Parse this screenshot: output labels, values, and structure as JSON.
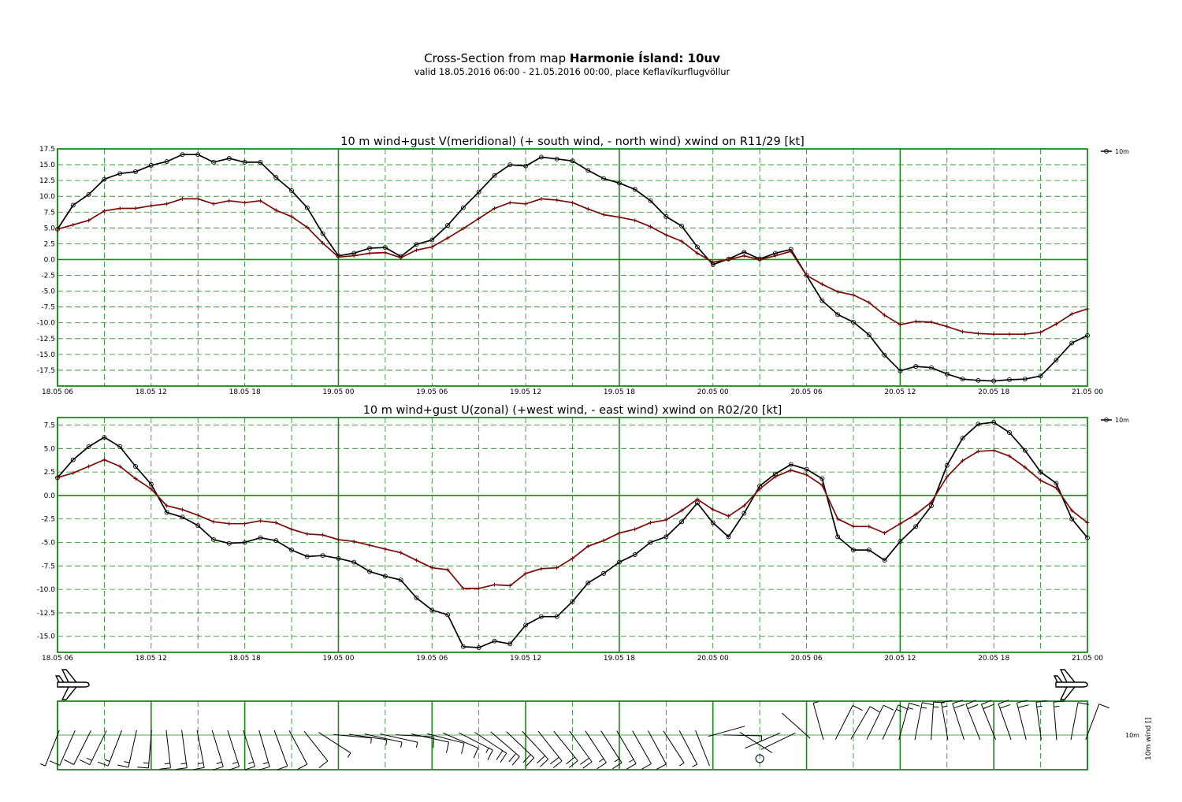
{
  "header": {
    "title_prefix": "Cross-Section from map",
    "title_bold": "Harmonie Ísland:  10uv",
    "subtitle": "valid 18.05.2016 06:00 - 21.05.2016 00:00, place Keflavíkurflugvöllur"
  },
  "colors": {
    "grid": "#1a8a1a",
    "wind_line": "#000000",
    "gust_line": "#7a0a0a"
  },
  "chart_data": [
    {
      "type": "line",
      "title": "10 m wind+gust V(meridional) (+ south wind, - north wind) xwind on R11/29 [kt]",
      "x_tick_labels": [
        "18.05 06",
        "18.05 12",
        "18.05 18",
        "19.05 00",
        "19.05 06",
        "19.05 12",
        "19.05 18",
        "20.05 00",
        "20.05 06",
        "20.05 12",
        "20.05 18",
        "21.05 00"
      ],
      "x_hours": [
        0,
        1,
        2,
        3,
        4,
        5,
        6,
        7,
        8,
        9,
        10,
        11,
        12,
        13,
        14,
        15,
        16,
        17,
        18,
        19,
        20,
        21,
        22,
        23,
        24,
        25,
        26,
        27,
        28,
        29,
        30,
        31,
        32,
        33,
        34,
        35,
        36,
        37,
        38,
        39,
        40,
        41,
        42,
        43,
        44,
        45,
        46,
        47,
        48,
        49,
        50,
        51,
        52,
        53,
        54,
        55,
        56,
        57,
        58,
        59,
        60,
        61,
        62,
        63,
        64,
        65,
        66
      ],
      "y_tick_labels": [
        "17.5",
        "15.0",
        "12.5",
        "10.0",
        "7.5",
        "5.0",
        "2.5",
        "0.0",
        "-2.5",
        "-5.0",
        "-7.5",
        "-10.0",
        "-12.5",
        "-15.0",
        "-17.5"
      ],
      "ylim": [
        -20,
        17.5
      ],
      "legend": "10m",
      "legend_position": "top-right",
      "series": [
        {
          "name": "10m",
          "marker": "circle",
          "values": [
            4.8,
            8.6,
            10.3,
            12.7,
            13.6,
            13.9,
            14.9,
            15.5,
            16.6,
            16.6,
            15.4,
            16.0,
            15.4,
            15.4,
            13.0,
            10.9,
            8.2,
            4.1,
            0.6,
            1.0,
            1.8,
            1.9,
            0.5,
            2.4,
            3.1,
            5.4,
            8.2,
            10.7,
            13.3,
            15.0,
            14.8,
            16.2,
            15.9,
            15.6,
            14.1,
            12.8,
            12.1,
            11.1,
            9.3,
            6.8,
            5.3,
            2.0,
            -0.8,
            0.1,
            1.2,
            0.1,
            1.0,
            1.6,
            -2.5,
            -6.5,
            -8.7,
            -9.9,
            -11.9,
            -15.1,
            -17.6,
            -16.9,
            -17.1,
            -18.1,
            -18.9,
            -19.1,
            -19.2,
            -19.0,
            -18.9,
            -18.4,
            -15.9,
            -13.2,
            -12.0
          ]
        },
        {
          "name": "",
          "marker": "plus",
          "values": [
            4.8,
            5.5,
            6.2,
            7.7,
            8.1,
            8.1,
            8.5,
            8.8,
            9.6,
            9.6,
            8.8,
            9.3,
            9.0,
            9.3,
            7.8,
            6.8,
            5.1,
            2.6,
            0.4,
            0.6,
            1.0,
            1.1,
            0.3,
            1.5,
            2.0,
            3.4,
            4.9,
            6.5,
            8.1,
            9.0,
            8.8,
            9.6,
            9.4,
            9.0,
            8.0,
            7.1,
            6.7,
            6.2,
            5.2,
            3.9,
            2.9,
            1.0,
            -0.4,
            0.0,
            0.6,
            0.0,
            0.6,
            1.3,
            -2.5,
            -3.9,
            -5.1,
            -5.6,
            -6.8,
            -8.8,
            -10.3,
            -9.8,
            -9.9,
            -10.6,
            -11.4,
            -11.7,
            -11.8,
            -11.8,
            -11.8,
            -11.5,
            -10.2,
            -8.6,
            -7.8
          ]
        }
      ]
    },
    {
      "type": "line",
      "title": "10 m wind+gust U(zonal) (+west wind, - east wind) xwind on R02/20 [kt]",
      "x_tick_labels": [
        "18.05 06",
        "18.05 12",
        "18.05 18",
        "19.05 00",
        "19.05 06",
        "19.05 12",
        "19.05 18",
        "20.05 00",
        "20.05 06",
        "20.05 12",
        "20.05 18",
        "21.05 00"
      ],
      "y_tick_labels": [
        "7.5",
        "5.0",
        "2.5",
        "0.0",
        "-2.5",
        "-5.0",
        "-7.5",
        "-10.0",
        "-12.5",
        "-15.0"
      ],
      "ylim": [
        -16.7,
        8.3
      ],
      "legend": "10m",
      "legend_position": "top-right",
      "series": [
        {
          "name": "10m",
          "marker": "circle",
          "values": [
            1.9,
            3.8,
            5.2,
            6.2,
            5.2,
            3.1,
            1.2,
            -1.8,
            -2.3,
            -3.2,
            -4.7,
            -5.1,
            -5.0,
            -4.5,
            -4.8,
            -5.8,
            -6.5,
            -6.4,
            -6.7,
            -7.1,
            -8.1,
            -8.6,
            -9.0,
            -10.9,
            -12.2,
            -12.7,
            -16.1,
            -16.2,
            -15.5,
            -15.8,
            -13.8,
            -12.9,
            -12.9,
            -11.3,
            -9.3,
            -8.3,
            -7.1,
            -6.3,
            -5.0,
            -4.4,
            -2.8,
            -0.8,
            -2.9,
            -4.4,
            -1.9,
            1.0,
            2.3,
            3.3,
            2.8,
            1.8,
            -4.4,
            -5.8,
            -5.8,
            -6.9,
            -4.9,
            -3.3,
            -1.1,
            3.2,
            6.1,
            7.6,
            7.8,
            6.7,
            4.8,
            2.5,
            1.3,
            -2.5,
            -4.5
          ]
        },
        {
          "name": "",
          "marker": "plus",
          "values": [
            1.9,
            2.4,
            3.1,
            3.8,
            3.1,
            1.8,
            0.7,
            -1.1,
            -1.5,
            -2.1,
            -2.8,
            -3.0,
            -3.0,
            -2.7,
            -2.9,
            -3.6,
            -4.1,
            -4.2,
            -4.7,
            -4.9,
            -5.3,
            -5.7,
            -6.1,
            -6.9,
            -7.7,
            -7.9,
            -9.9,
            -9.9,
            -9.5,
            -9.6,
            -8.3,
            -7.8,
            -7.7,
            -6.7,
            -5.4,
            -4.8,
            -4.0,
            -3.6,
            -2.9,
            -2.6,
            -1.6,
            -0.4,
            -1.5,
            -2.2,
            -1.1,
            0.7,
            2.0,
            2.7,
            2.2,
            1.1,
            -2.5,
            -3.3,
            -3.3,
            -4.0,
            -3.0,
            -2.0,
            -0.7,
            2.0,
            3.7,
            4.7,
            4.8,
            4.2,
            3.0,
            1.6,
            0.8,
            -1.6,
            -2.9
          ]
        }
      ]
    }
  ],
  "wind_panel": {
    "axis_label": "10m wind []",
    "row_label": "10m",
    "calm_symbol": "circle",
    "plane_icons": [
      "airplane-icon-left",
      "airplane-icon-right"
    ]
  }
}
